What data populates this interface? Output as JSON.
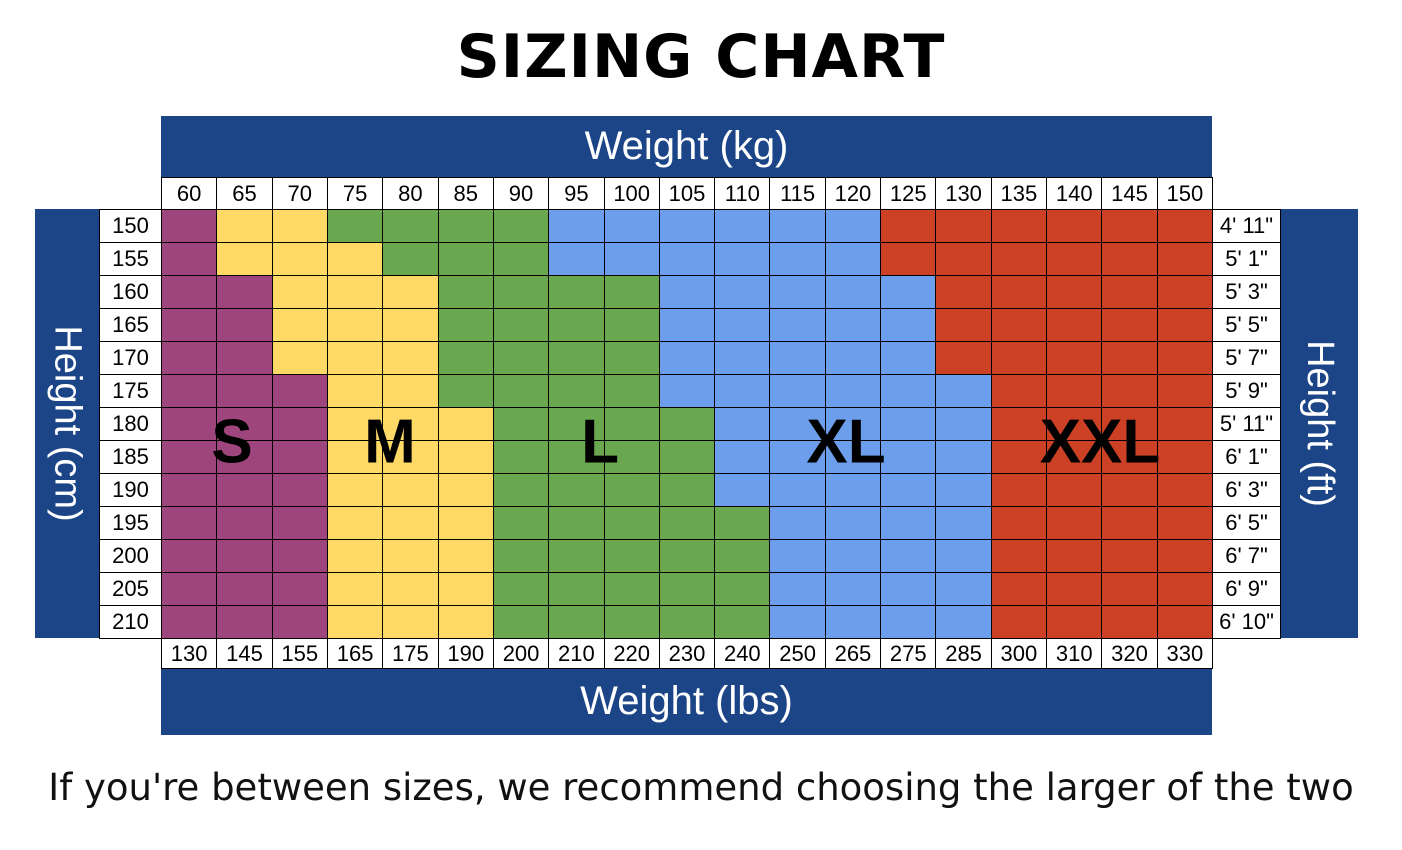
{
  "chart_data": {
    "type": "heatmap",
    "title": "SIZING CHART",
    "top_axis_label": "Weight (kg)",
    "bottom_axis_label": "Weight (lbs)",
    "left_axis_label": "Height (cm)",
    "right_axis_label": "Height (ft)",
    "weight_kg": [
      "60",
      "65",
      "70",
      "75",
      "80",
      "85",
      "90",
      "95",
      "100",
      "105",
      "110",
      "115",
      "120",
      "125",
      "130",
      "135",
      "140",
      "145",
      "150"
    ],
    "weight_lbs": [
      "130",
      "145",
      "155",
      "165",
      "175",
      "190",
      "200",
      "210",
      "220",
      "230",
      "240",
      "250",
      "265",
      "275",
      "285",
      "300",
      "310",
      "320",
      "330"
    ],
    "height_cm": [
      "150",
      "155",
      "160",
      "165",
      "170",
      "175",
      "180",
      "185",
      "190",
      "195",
      "200",
      "205",
      "210"
    ],
    "height_ft": [
      "4' 11\"",
      "5' 1\"",
      "5' 3\"",
      "5' 5\"",
      "5' 7\"",
      "5' 9\"",
      "5' 11\"",
      "6' 1\"",
      "6' 3\"",
      "6' 5\"",
      "6' 7\"",
      "6' 9\"",
      "6' 10\""
    ],
    "sizes": [
      {
        "name": "S",
        "color": "#9e457d"
      },
      {
        "name": "M",
        "color": "#fed966"
      },
      {
        "name": "L",
        "color": "#6aa84f"
      },
      {
        "name": "XL",
        "color": "#6d9eeb"
      },
      {
        "name": "XXL",
        "color": "#cc4125"
      }
    ],
    "grid": [
      [
        "S",
        "M",
        "M",
        "L",
        "L",
        "L",
        "L",
        "XL",
        "XL",
        "XL",
        "XL",
        "XL",
        "XL",
        "XXL",
        "XXL",
        "XXL",
        "XXL",
        "XXL",
        "XXL"
      ],
      [
        "S",
        "M",
        "M",
        "M",
        "L",
        "L",
        "L",
        "XL",
        "XL",
        "XL",
        "XL",
        "XL",
        "XL",
        "XXL",
        "XXL",
        "XXL",
        "XXL",
        "XXL",
        "XXL"
      ],
      [
        "S",
        "S",
        "M",
        "M",
        "M",
        "L",
        "L",
        "L",
        "L",
        "XL",
        "XL",
        "XL",
        "XL",
        "XL",
        "XXL",
        "XXL",
        "XXL",
        "XXL",
        "XXL"
      ],
      [
        "S",
        "S",
        "M",
        "M",
        "M",
        "L",
        "L",
        "L",
        "L",
        "XL",
        "XL",
        "XL",
        "XL",
        "XL",
        "XXL",
        "XXL",
        "XXL",
        "XXL",
        "XXL"
      ],
      [
        "S",
        "S",
        "M",
        "M",
        "M",
        "L",
        "L",
        "L",
        "L",
        "XL",
        "XL",
        "XL",
        "XL",
        "XL",
        "XXL",
        "XXL",
        "XXL",
        "XXL",
        "XXL"
      ],
      [
        "S",
        "S",
        "S",
        "M",
        "M",
        "L",
        "L",
        "L",
        "L",
        "XL",
        "XL",
        "XL",
        "XL",
        "XL",
        "XL",
        "XXL",
        "XXL",
        "XXL",
        "XXL"
      ],
      [
        "S",
        "S",
        "S",
        "M",
        "M",
        "M",
        "L",
        "L",
        "L",
        "L",
        "XL",
        "XL",
        "XL",
        "XL",
        "XL",
        "XXL",
        "XXL",
        "XXL",
        "XXL"
      ],
      [
        "S",
        "S",
        "S",
        "M",
        "M",
        "M",
        "L",
        "L",
        "L",
        "L",
        "XL",
        "XL",
        "XL",
        "XL",
        "XL",
        "XXL",
        "XXL",
        "XXL",
        "XXL"
      ],
      [
        "S",
        "S",
        "S",
        "M",
        "M",
        "M",
        "L",
        "L",
        "L",
        "L",
        "XL",
        "XL",
        "XL",
        "XL",
        "XL",
        "XXL",
        "XXL",
        "XXL",
        "XXL"
      ],
      [
        "S",
        "S",
        "S",
        "M",
        "M",
        "M",
        "L",
        "L",
        "L",
        "L",
        "L",
        "XL",
        "XL",
        "XL",
        "XL",
        "XXL",
        "XXL",
        "XXL",
        "XXL"
      ],
      [
        "S",
        "S",
        "S",
        "M",
        "M",
        "M",
        "L",
        "L",
        "L",
        "L",
        "L",
        "XL",
        "XL",
        "XL",
        "XL",
        "XXL",
        "XXL",
        "XXL",
        "XXL"
      ],
      [
        "S",
        "S",
        "S",
        "M",
        "M",
        "M",
        "L",
        "L",
        "L",
        "L",
        "L",
        "XL",
        "XL",
        "XL",
        "XL",
        "XXL",
        "XXL",
        "XXL",
        "XXL"
      ],
      [
        "S",
        "S",
        "S",
        "M",
        "M",
        "M",
        "L",
        "L",
        "L",
        "L",
        "L",
        "XL",
        "XL",
        "XL",
        "XL",
        "XXL",
        "XXL",
        "XXL",
        "XXL"
      ]
    ],
    "banner_color": "#1c4587",
    "footnote": "If you're between sizes, we recommend choosing the larger of the two"
  }
}
